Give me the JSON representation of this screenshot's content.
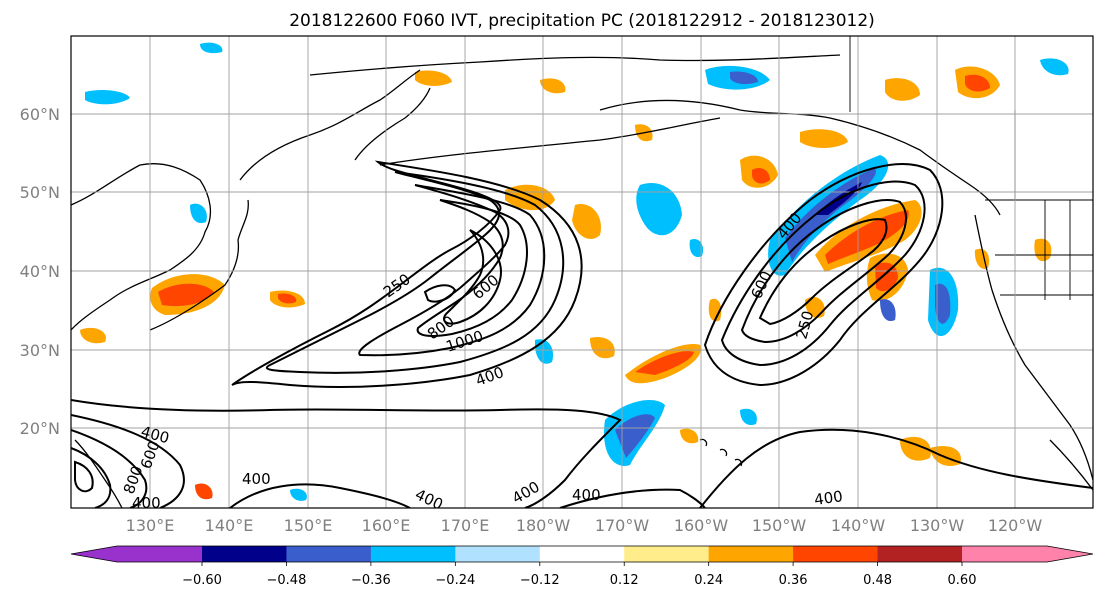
{
  "title": "2018122600 F060 IVT, precipitation PC (2018122912 - 2018123012)",
  "lat_labels": [
    "60°N",
    "50°N",
    "40°N",
    "30°N",
    "20°N"
  ],
  "lon_labels": [
    "130°E",
    "140°E",
    "150°E",
    "160°E",
    "170°E",
    "180°W",
    "170°W",
    "160°W",
    "150°W",
    "140°W",
    "130°W",
    "120°W"
  ],
  "colorbar": {
    "tick_labels": [
      "-0.60",
      "-0.48",
      "-0.36",
      "-0.24",
      "-0.12",
      "0.12",
      "0.24",
      "0.36",
      "0.48",
      "0.60"
    ],
    "colors": [
      "#9932cc",
      "#00008b",
      "#3a5fcd",
      "#00bfff",
      "#b0e2ff",
      "#ffffff",
      "#ffec8b",
      "#ffa500",
      "#ff4500",
      "#b22222",
      "#ff82ab"
    ],
    "extend": "both"
  },
  "contour_labels": [
    "250",
    "600",
    "800",
    "1000",
    "400",
    "400",
    "600",
    "250",
    "400",
    "600",
    "800",
    "400",
    "400",
    "400",
    "400",
    "400"
  ],
  "colors": {
    "contour": "#000000",
    "grid": "#a0a0a0",
    "coast": "#000000"
  }
}
